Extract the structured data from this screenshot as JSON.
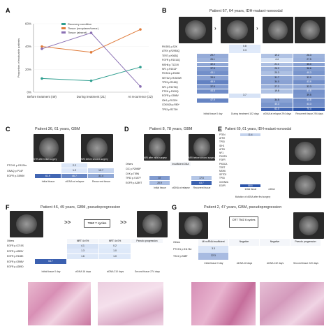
{
  "panels": {
    "A": {
      "letter": "A",
      "chart_data": {
        "type": "line",
        "categories": [
          "Before treatment (49)",
          "During treatment (21)",
          "At recurrence (22)"
        ],
        "ylabel": "Proportion of evaluable patients",
        "yticks": [
          "0%",
          "20%",
          "40%",
          "60%"
        ],
        "ylim": [
          0,
          60
        ],
        "legend_position": "top",
        "series": [
          {
            "name": "Recovery condition",
            "color": "#2e9e8f",
            "values": [
              12,
              10,
              22
            ]
          },
          {
            "name": "Tissue (neoplasm/tumor)",
            "color": "#e07b3a",
            "values": [
              40,
              35,
              55
            ]
          },
          {
            "name": "Tissue (absent)",
            "color": "#8a6fb3",
            "values": [
              38,
              52,
              5
            ]
          }
        ]
      }
    },
    "B": {
      "letter": "B",
      "title": "Patient 67, 64 years, IDH-mutant-nonoodal",
      "cols": [
        "Initial tissue 0 day",
        "During treatment 102 days",
        "ctDNA at relapse 294 days",
        "Recurrent tissue 294 days"
      ],
      "genes": [
        "PIK3R1 p.S2K",
        "ATRX p.R2953Q",
        "TERT p.K563Q",
        "FGFR p.R1014Q",
        "MSH6 p.T1219I",
        "NF1 p.R1513*",
        "PIK3CA p.E545K",
        "SETD2 p.R1523W",
        "TP53 p.R248Q",
        "NF1 p.R1276Q",
        "PTEN p.R130Q",
        "EGFR p.G598V",
        "IDH1 p.R132H",
        "CDKN2A p.R80*",
        "TP53 p.R273H"
      ],
      "values": [
        [
          "",
          "0.8",
          "",
          ""
        ],
        [
          "",
          "0.3",
          "",
          ""
        ],
        [
          "29.7",
          "",
          "19.2",
          "26.3"
        ],
        [
          "26.1",
          "",
          "4.4",
          "27.5"
        ],
        [
          "32.3",
          "",
          "21.1",
          "35.0"
        ],
        [
          "37.5",
          "",
          "26.2",
          "36.6"
        ],
        [
          "43.1",
          "",
          "20.3",
          "40.3"
        ],
        [
          "33.6",
          "",
          "31.7",
          "32.0"
        ],
        [
          "48.9",
          "",
          "34.0",
          "43.6"
        ],
        [
          "37.9",
          "",
          "27.2",
          "32.3"
        ],
        [
          "44.8",
          "",
          "19.8",
          "41.5"
        ],
        [
          "",
          "3.7",
          "",
          "39.5"
        ],
        [
          "47.9",
          "",
          "34.5",
          "44.8"
        ],
        [
          "",
          "",
          "40.3",
          "43.3"
        ],
        [
          "",
          "",
          "62.0",
          "70.4"
        ]
      ]
    },
    "C": {
      "letter": "C",
      "title": "Patient 36, 61 years, GBM",
      "img_labels": [
        "STR after initial surgery",
        "MRI before second surgery"
      ],
      "genes": [
        "PTCH1 p.G1124s",
        "GNAQ p.P14F",
        "EGFR p.G598V"
      ],
      "cols": [
        "Initial tissue",
        "ctDNA at relapse",
        "Recurrent tissue"
      ],
      "values": [
        [
          "",
          "2.2",
          ""
        ],
        [
          "",
          "1.2",
          "10.7"
        ],
        [
          "61.9",
          "46.7",
          "31.4"
        ]
      ]
    },
    "D": {
      "letter": "D",
      "title": "Patient 8, 78 years, GBM",
      "img_labels": [
        "MRI after initial surgery",
        "MRI before second surgery"
      ],
      "genes": [
        "Others",
        "CIC p.P2596P",
        "CKK p.T59N",
        "TP53 p.V157F",
        "EGFR p.A289T"
      ],
      "cols": [
        "Initial tissue",
        "ctDNA at relapse",
        "Recurrent tissue"
      ],
      "values": [
        [
          "",
          "Insufficient DNA",
          ""
        ],
        [
          "",
          "",
          ""
        ],
        [
          "",
          "",
          ""
        ],
        [
          "37",
          "",
          "17.5"
        ],
        [
          "20.9",
          "",
          "63.7"
        ]
      ]
    },
    "E": {
      "letter": "E",
      "title": "Patient 69, 61 years, IDH-mutant-nonoodal",
      "cols": [
        "Initial tissue",
        "ctDNA"
      ],
      "genes": [
        "PTEN",
        "ATRX",
        "TP53",
        "IDH1",
        "ATRX",
        "NF1",
        "PIK3R1",
        "FGFR",
        "PIK3CA",
        "TERT",
        "MSH6",
        "SETD2",
        "TP53",
        "CDKN2A",
        "EGFR"
      ],
      "values": [
        [
          "11.4",
          ""
        ],
        [
          "",
          ""
        ],
        [
          "",
          ""
        ],
        [
          "",
          ""
        ],
        [
          "",
          ""
        ],
        [
          "",
          ""
        ],
        [
          "",
          ""
        ],
        [
          "",
          ""
        ],
        [
          "",
          ""
        ],
        [
          "",
          ""
        ],
        [
          "",
          ""
        ],
        [
          "",
          ""
        ],
        [
          "",
          ""
        ],
        [
          "",
          ""
        ],
        [
          "88.6",
          ""
        ]
      ],
      "footer": "Mutation of ctDNA after first surgery"
    },
    "F": {
      "letter": "F",
      "title": "Patient 46, 49 years, GBM, pseudoprogression",
      "treatment": "TMZ 7 cycles",
      "arrows": ">>",
      "genes": [
        "Others",
        "EGFR p.G719S",
        "EGFR p.A289V",
        "EGFR p.R108K",
        "EGFR p.G598V",
        "EGFR p.A289D"
      ],
      "cols": [
        "Initial tissue 0 day",
        "ctDNA 16 days",
        "ctDNA 210 days",
        "Second tissue 274 days"
      ],
      "values": [
        [
          "",
          "MRT 4x 0%",
          "MRT 4x 0%",
          "Pseudo progression"
        ],
        [
          "",
          "4.1",
          "0.2",
          ""
        ],
        [
          "",
          "1.3",
          "1.0",
          ""
        ],
        [
          "",
          "1.6",
          "1.0",
          ""
        ],
        [
          "64.7",
          "",
          "",
          ""
        ],
        [
          "",
          "",
          "",
          ""
        ]
      ]
    },
    "G": {
      "letter": "G",
      "title": "Patient 2, 47 years, GBM, pseudoprogression",
      "treatment": "CRT TMZ 6 cycles",
      "genes": [
        "Others",
        "PTCH1 p.S1174d",
        "TSC2 p.S88F"
      ],
      "cols": [
        "Initial tissue 0 day",
        "ctDNA 18 days",
        "ctDNA 132 days",
        "Second tissue 220 days"
      ],
      "values": [
        [
          "MI ncRNA insufficient",
          "Negative",
          "Negative",
          "Pseudo progression"
        ],
        [
          "3.3",
          "",
          "",
          ""
        ],
        [
          "22.3",
          "",
          "",
          ""
        ]
      ]
    }
  }
}
